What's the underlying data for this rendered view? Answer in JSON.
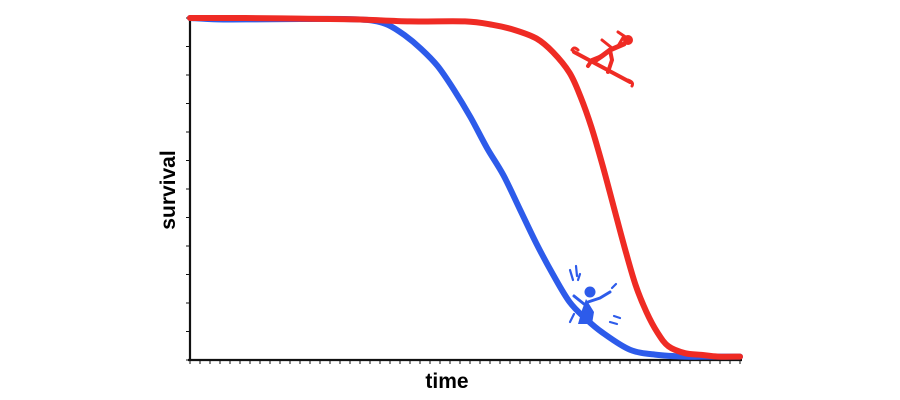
{
  "chart_data": {
    "type": "line",
    "title": "",
    "xlabel": "time",
    "ylabel": "survival",
    "xlim": [
      0,
      1
    ],
    "ylim": [
      0,
      1
    ],
    "grid": false,
    "legend": "none",
    "series": [
      {
        "color": "#2d5bea",
        "icon": "drowning-person-icon",
        "x": [
          0,
          0.05,
          0.12,
          0.2,
          0.28,
          0.33,
          0.36,
          0.39,
          0.42,
          0.45,
          0.48,
          0.51,
          0.54,
          0.57,
          0.6,
          0.63,
          0.66,
          0.69,
          0.72,
          0.75,
          0.8,
          0.85,
          0.9,
          0.95,
          1.0
        ],
        "y": [
          1.0,
          0.996,
          0.996,
          0.997,
          0.997,
          0.993,
          0.98,
          0.95,
          0.91,
          0.86,
          0.79,
          0.71,
          0.62,
          0.54,
          0.44,
          0.34,
          0.25,
          0.17,
          0.12,
          0.08,
          0.03,
          0.015,
          0.01,
          0.01,
          0.01
        ]
      },
      {
        "color": "#ef2b24",
        "icon": "snowboarder-icon",
        "x": [
          0,
          0.1,
          0.2,
          0.3,
          0.4,
          0.5,
          0.55,
          0.59,
          0.63,
          0.66,
          0.69,
          0.71,
          0.73,
          0.75,
          0.77,
          0.79,
          0.81,
          0.83,
          0.85,
          0.87,
          0.9,
          0.93,
          0.96,
          1.0
        ],
        "y": [
          1.0,
          1.0,
          0.998,
          0.996,
          0.99,
          0.99,
          0.98,
          0.965,
          0.94,
          0.9,
          0.84,
          0.77,
          0.68,
          0.57,
          0.45,
          0.33,
          0.22,
          0.14,
          0.08,
          0.04,
          0.02,
          0.015,
          0.01,
          0.01
        ]
      }
    ]
  }
}
